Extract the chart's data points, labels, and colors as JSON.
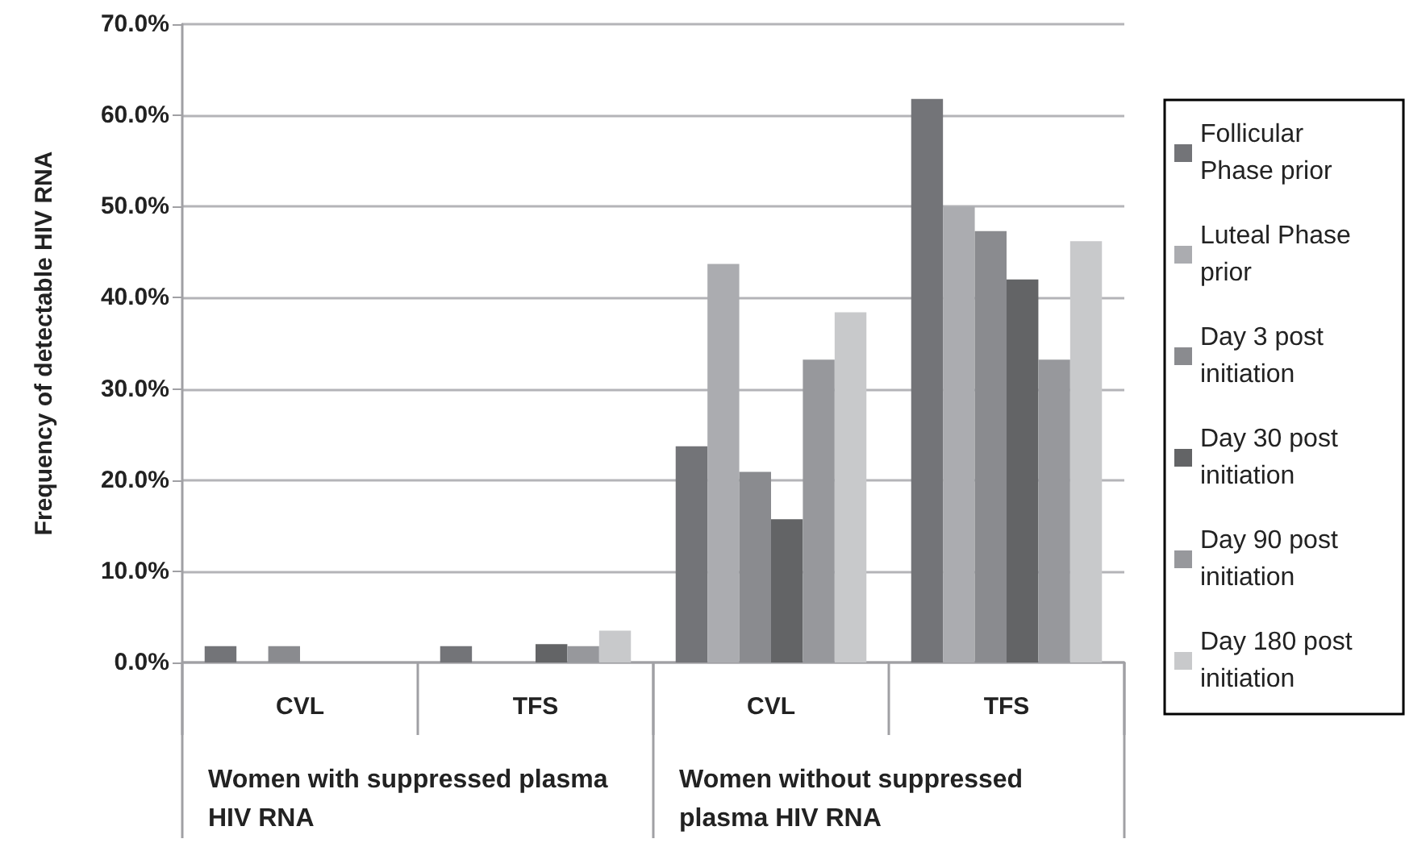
{
  "chart_data": {
    "type": "bar",
    "ylabel": "Frequency of detectable HIV RNA",
    "categories": [
      "CVL",
      "TFS",
      "CVL",
      "TFS"
    ],
    "annotations": [
      "Women with suppressed plasma HIV RNA",
      "Women without suppressed plasma HIV RNA"
    ],
    "series": [
      {
        "name": "Follicular Phase prior",
        "color": "#737478",
        "values": [
          1.8,
          1.8,
          23.7,
          61.8
        ]
      },
      {
        "name": "Luteal Phase prior",
        "color": "#abacb0",
        "values": [
          0,
          0,
          43.7,
          50.0
        ]
      },
      {
        "name": "Day 3 post initiation",
        "color": "#8a8b8f",
        "values": [
          1.8,
          0,
          20.9,
          47.3
        ]
      },
      {
        "name": "Day 30 post initiation",
        "color": "#636466",
        "values": [
          0,
          2.0,
          15.7,
          42.0
        ]
      },
      {
        "name": "Day 90 post initiation",
        "color": "#97989c",
        "values": [
          0,
          1.8,
          33.2,
          33.2
        ]
      },
      {
        "name": "Day 180 post initiation",
        "color": "#c8c9cb",
        "values": [
          0,
          3.5,
          38.4,
          46.2
        ]
      }
    ],
    "ylim": [
      0,
      70
    ],
    "yticks": [
      {
        "value": 0,
        "label": "0.0%"
      },
      {
        "value": 10,
        "label": "10.0%"
      },
      {
        "value": 20,
        "label": "20.0%"
      },
      {
        "value": 30,
        "label": "30.0%"
      },
      {
        "value": 40,
        "label": "40.0%"
      },
      {
        "value": 50,
        "label": "50.0%"
      },
      {
        "value": 60,
        "label": "60.0%"
      },
      {
        "value": 70,
        "label": "70.0%"
      }
    ],
    "grid": "y",
    "legend": "right"
  }
}
